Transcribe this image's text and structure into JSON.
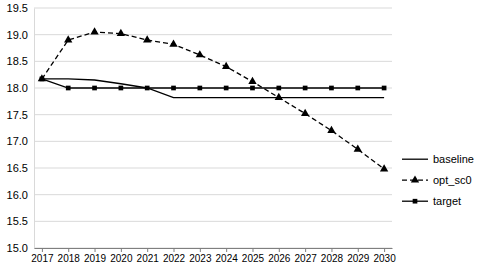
{
  "chart_data": {
    "type": "line",
    "categories": [
      "2017",
      "2018",
      "2019",
      "2020",
      "2021",
      "2022",
      "2023",
      "2024",
      "2025",
      "2026",
      "2027",
      "2028",
      "2029",
      "2030"
    ],
    "series": [
      {
        "name": "baseline",
        "color": "#000000",
        "marker": "none",
        "line_style": "solid",
        "values": [
          18.17,
          18.17,
          18.15,
          18.08,
          18.0,
          17.82,
          17.82,
          17.82,
          17.82,
          17.82,
          17.82,
          17.82,
          17.82,
          17.82
        ]
      },
      {
        "name": "opt_sc0",
        "color": "#000000",
        "marker": "triangle",
        "line_style": "dashed",
        "values": [
          18.17,
          18.9,
          19.05,
          19.02,
          18.9,
          18.82,
          18.62,
          18.4,
          18.12,
          17.82,
          17.52,
          17.2,
          16.85,
          16.48
        ]
      },
      {
        "name": "target",
        "color": "#000000",
        "marker": "square",
        "line_style": "solid",
        "values": [
          18.17,
          18.0,
          18.0,
          18.0,
          18.0,
          18.0,
          18.0,
          18.0,
          18.0,
          18.0,
          18.0,
          18.0,
          18.0,
          18.0
        ]
      }
    ],
    "ylim": [
      15.0,
      19.5
    ],
    "yticks": [
      {
        "value": 15,
        "label": "15.0"
      },
      15.5,
      {
        "value": 16,
        "label": "16.0"
      },
      16.5,
      {
        "value": 17,
        "label": "17.0"
      },
      17.5,
      {
        "value": 18,
        "label": "18.0"
      },
      18.5,
      {
        "value": 19,
        "label": "19.0"
      },
      19.5
    ],
    "grid": true,
    "legend": "right"
  }
}
